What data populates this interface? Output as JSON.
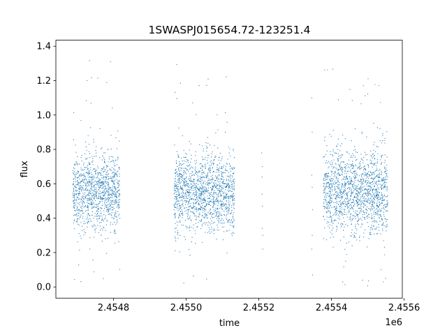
{
  "chart_data": {
    "type": "scatter",
    "title": "1SWASPJ015654.72-123251.4",
    "xlabel": "time",
    "ylabel": "flux",
    "x_offset_label": "1e6",
    "xlim": [
      2454641.5,
      2455595.0
    ],
    "ylim": [
      -0.065,
      1.435
    ],
    "x_ticks": [
      2454800,
      2455000,
      2455200,
      2455400,
      2455600
    ],
    "x_tick_labels": [
      "2.4548",
      "2.4550",
      "2.4552",
      "2.4554",
      "2.4556"
    ],
    "y_ticks": [
      0.0,
      0.2,
      0.4,
      0.6,
      0.8,
      1.0,
      1.2,
      1.4
    ],
    "y_tick_labels": [
      "0.0",
      "0.2",
      "0.4",
      "0.6",
      "0.8",
      "1.0",
      "1.2",
      "1.4"
    ],
    "grid": false,
    "marker_color": "#1f77b4",
    "series": [
      {
        "clusters": [
          {
            "x_start": 2454688,
            "x_end": 2454818,
            "center": 0.55,
            "spread": 0.11,
            "min": 0.02,
            "max": 1.1,
            "outlier_max": 1.33
          },
          {
            "x_start": 2454966,
            "x_end": 2455133,
            "center": 0.55,
            "spread": 0.11,
            "min": 0.0,
            "max": 1.05,
            "outlier_max": 1.36
          },
          {
            "x_start": 2455378,
            "x_end": 2455555,
            "center": 0.55,
            "spread": 0.12,
            "min": 0.0,
            "max": 1.15,
            "outlier_max": 1.33
          }
        ],
        "sparse_points": [
          {
            "x": 2455208,
            "y": 0.78
          },
          {
            "x": 2455209,
            "y": 0.64
          },
          {
            "x": 2455209,
            "y": 0.54
          },
          {
            "x": 2455210,
            "y": 0.47
          },
          {
            "x": 2455210,
            "y": 0.34
          },
          {
            "x": 2455211,
            "y": 0.3
          },
          {
            "x": 2455211,
            "y": 0.22
          },
          {
            "x": 2455210,
            "y": 0.7
          },
          {
            "x": 2455346,
            "y": 1.1
          },
          {
            "x": 2455347,
            "y": 0.9
          },
          {
            "x": 2455346,
            "y": 0.65
          },
          {
            "x": 2455347,
            "y": 0.58
          },
          {
            "x": 2455348,
            "y": 0.45
          },
          {
            "x": 2455347,
            "y": 0.3
          },
          {
            "x": 2455346,
            "y": 0.22
          },
          {
            "x": 2455348,
            "y": 0.07
          }
        ]
      }
    ]
  }
}
